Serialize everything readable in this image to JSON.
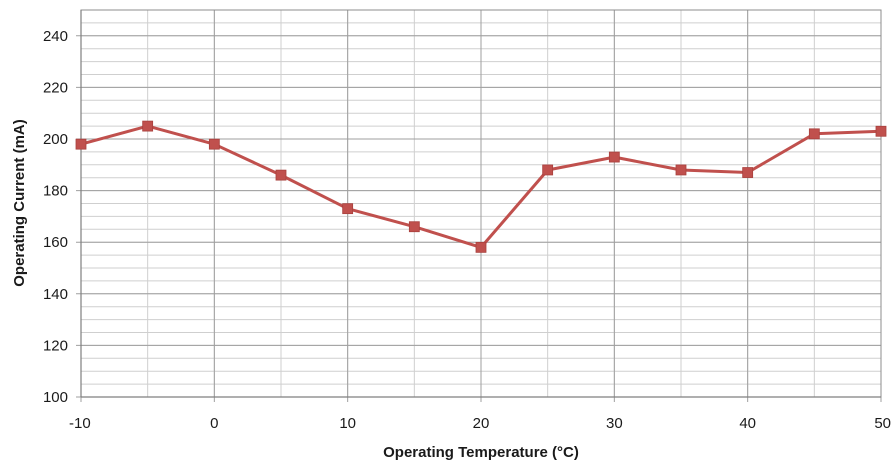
{
  "chart_data": {
    "type": "line",
    "title": "",
    "xlabel": "Operating Temperature (°C)",
    "ylabel": "Operating Current (mA)",
    "xlim": [
      -10,
      50
    ],
    "ylim": [
      100,
      250
    ],
    "x_ticks": [
      -10,
      0,
      10,
      20,
      30,
      40,
      50
    ],
    "x_tick_labels": [
      "-10",
      "0",
      "10",
      "20",
      "30",
      "40",
      "50"
    ],
    "y_ticks": [
      100,
      120,
      140,
      160,
      180,
      200,
      220,
      240
    ],
    "y_tick_labels": [
      "100",
      "120",
      "140",
      "160",
      "180",
      "200",
      "220",
      "240"
    ],
    "x_minor_gridlines_every": 5,
    "y_minor_gridlines_every": 4,
    "grid": true,
    "legend": "none",
    "marker": "square",
    "colors": {
      "series": "#c0504d",
      "major_grid": "#9f9f9f",
      "minor_grid": "#cfcfcf"
    },
    "series": [
      {
        "x": [
          -10,
          -5,
          0,
          5,
          10,
          15,
          20,
          25,
          30,
          35,
          40,
          45,
          50
        ],
        "values": [
          198,
          205,
          198,
          186,
          173,
          166,
          158,
          188,
          193,
          188,
          187,
          202,
          203
        ]
      }
    ]
  }
}
